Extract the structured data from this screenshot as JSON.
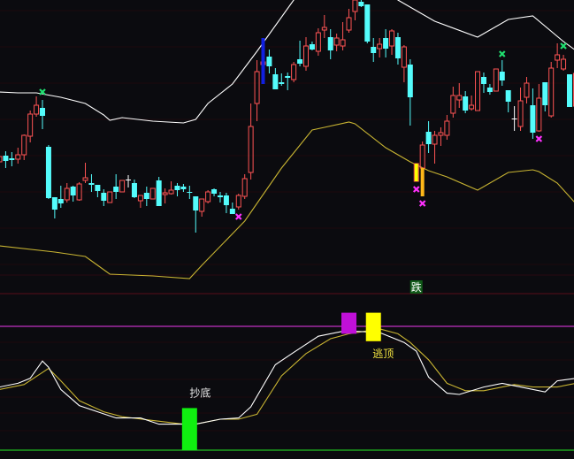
{
  "colors": {
    "background": "#0b0b0f",
    "up_candle": "#ff5454",
    "down_candle": "#54fcfc",
    "doji": "#ffffff",
    "upper_band": "#ffffff",
    "lower_band": "#c8b432",
    "osc_fast": "#ffffff",
    "osc_slow": "#c8b432",
    "grid": "#3a0a12",
    "ref_line_high": "#c030c0",
    "ref_line_low": "#20c020",
    "buy_marker": "#20e070",
    "sell_marker": "#ff30ff"
  },
  "chart_data": [
    {
      "type": "candlestick",
      "panel": "price",
      "title": "",
      "ylim": [
        0,
        330
      ],
      "candles_ohlc": [
        [
          147,
          155,
          145,
          153
        ],
        [
          154,
          159,
          140,
          148
        ],
        [
          151,
          158,
          142,
          149
        ],
        [
          150,
          163,
          145,
          155
        ],
        [
          155,
          178,
          149,
          177
        ],
        [
          176,
          205,
          169,
          201
        ],
        [
          201,
          221,
          198,
          211
        ],
        [
          208,
          217,
          184,
          199
        ],
        [
          164,
          166,
          105,
          106
        ],
        [
          107,
          107,
          83,
          93
        ],
        [
          105,
          120,
          95,
          100
        ],
        [
          104,
          123,
          101,
          117
        ],
        [
          119,
          120,
          102,
          109
        ],
        [
          104,
          124,
          103,
          122
        ],
        [
          126,
          146,
          123,
          129
        ],
        [
          123,
          133,
          113,
          121
        ],
        [
          121,
          121,
          107,
          114
        ],
        [
          112,
          116,
          97,
          103
        ],
        [
          101,
          113,
          101,
          113
        ],
        [
          119,
          133,
          105,
          113
        ],
        [
          113,
          126,
          113,
          126
        ],
        [
          127,
          132,
          118,
          127
        ],
        [
          123,
          127,
          106,
          107
        ],
        [
          103,
          109,
          95,
          109
        ],
        [
          112,
          119,
          97,
          105
        ],
        [
          105,
          117,
          105,
          117
        ],
        [
          126,
          130,
          97,
          97
        ],
        [
          110,
          117,
          100,
          112
        ],
        [
          111,
          125,
          110,
          115
        ],
        [
          120,
          123,
          108,
          115
        ],
        [
          119,
          122,
          113,
          116
        ],
        [
          113,
          120,
          105,
          112
        ],
        [
          108,
          108,
          67,
          92
        ],
        [
          91,
          105,
          85,
          105
        ],
        [
          102,
          115,
          100,
          113
        ],
        [
          116,
          117,
          108,
          111
        ],
        [
          109,
          113,
          101,
          107
        ],
        [
          109,
          112,
          89,
          98
        ],
        [
          94,
          101,
          88,
          88
        ],
        [
          96,
          111,
          93,
          109
        ],
        [
          108,
          133,
          105,
          128
        ],
        [
          135,
          213,
          127,
          187
        ],
        [
          213,
          262,
          193,
          249
        ],
        [
          257,
          265,
          250,
          260
        ],
        [
          266,
          274,
          247,
          255
        ],
        [
          246,
          253,
          229,
          229
        ],
        [
          237,
          247,
          233,
          235
        ],
        [
          244,
          248,
          228,
          242
        ],
        [
          240,
          260,
          237,
          257
        ],
        [
          263,
          284,
          255,
          258
        ],
        [
          255,
          288,
          250,
          278
        ],
        [
          280,
          283,
          273,
          274
        ],
        [
          272,
          298,
          267,
          293
        ],
        [
          296,
          313,
          287,
          299
        ],
        [
          288,
          297,
          263,
          273
        ],
        [
          279,
          292,
          272,
          287
        ],
        [
          278,
          305,
          273,
          285
        ],
        [
          296,
          320,
          293,
          310
        ],
        [
          317,
          335,
          307,
          330
        ],
        [
          328,
          335,
          322,
          323
        ],
        [
          325,
          325,
          281,
          283
        ],
        [
          277,
          287,
          260,
          270
        ],
        [
          275,
          287,
          265,
          280
        ],
        [
          287,
          297,
          265,
          275
        ],
        [
          278,
          297,
          268,
          295
        ],
        [
          288,
          293,
          257,
          264
        ],
        [
          254,
          279,
          237,
          277
        ],
        [
          257,
          263,
          188,
          220
        ],
        [
          125,
          145,
          125,
          145
        ],
        [
          140,
          170,
          140,
          166
        ],
        [
          181,
          193,
          157,
          167
        ],
        [
          167,
          182,
          145,
          177
        ],
        [
          177,
          186,
          165,
          180
        ],
        [
          177,
          200,
          172,
          193
        ],
        [
          202,
          232,
          197,
          222
        ],
        [
          217,
          236,
          208,
          222
        ],
        [
          221,
          227,
          202,
          205
        ],
        [
          207,
          222,
          205,
          211
        ],
        [
          205,
          249,
          205,
          249
        ],
        [
          243,
          248,
          225,
          235
        ],
        [
          231,
          235,
          223,
          226
        ],
        [
          227,
          252,
          227,
          252
        ],
        [
          249,
          262,
          233,
          239
        ],
        [
          228,
          228,
          203,
          215
        ],
        [
          196,
          210,
          182,
          196
        ],
        [
          187,
          231,
          182,
          216
        ],
        [
          220,
          243,
          213,
          236
        ],
        [
          211,
          230,
          173,
          180
        ],
        [
          182,
          235,
          181,
          219
        ],
        [
          237,
          237,
          204,
          211
        ],
        [
          199,
          260,
          197,
          253
        ],
        [
          262,
          281,
          253,
          268
        ],
        [
          252,
          268,
          250,
          263
        ],
        [
          246,
          246,
          209,
          209
        ],
        [
          210,
          247,
          210,
          247
        ]
      ],
      "upper_band": [
        [
          0,
          226
        ],
        [
          3,
          225
        ],
        [
          6,
          225
        ],
        [
          10,
          220
        ],
        [
          14,
          213
        ],
        [
          17,
          200
        ],
        [
          18,
          194
        ],
        [
          20,
          197
        ],
        [
          25,
          193
        ],
        [
          30,
          191
        ],
        [
          32,
          195
        ],
        [
          34,
          213
        ],
        [
          38,
          235
        ],
        [
          42,
          272
        ],
        [
          48,
          330
        ],
        [
          50,
          345
        ],
        [
          63,
          342
        ],
        [
          65,
          330
        ],
        [
          71,
          306
        ],
        [
          78,
          288
        ],
        [
          83,
          308
        ],
        [
          87,
          312
        ],
        [
          92,
          283
        ],
        [
          94,
          273
        ]
      ],
      "lower_band": [
        [
          0,
          52
        ],
        [
          9,
          45
        ],
        [
          14,
          40
        ],
        [
          16,
          30
        ],
        [
          18,
          20
        ],
        [
          25,
          18
        ],
        [
          31,
          15
        ],
        [
          33,
          30
        ],
        [
          40,
          80
        ],
        [
          46,
          140
        ],
        [
          51,
          183
        ],
        [
          53,
          186
        ],
        [
          57,
          192
        ],
        [
          58,
          190
        ],
        [
          63,
          163
        ],
        [
          67,
          147
        ],
        [
          70,
          137
        ],
        [
          73,
          130
        ],
        [
          78,
          115
        ],
        [
          83,
          135
        ],
        [
          87,
          138
        ],
        [
          88,
          136
        ],
        [
          91,
          123
        ],
        [
          94,
          100
        ]
      ],
      "signal_bars": [
        {
          "index": 43,
          "from": 235,
          "to": 287,
          "color": "#1020e0"
        },
        {
          "index": 68,
          "from": 125,
          "to": 145,
          "color": "#ffff00"
        },
        {
          "index": 69,
          "from": 108,
          "to": 140,
          "color": "#ffb818"
        }
      ],
      "buy_markers": [
        {
          "index": 7,
          "value": 226
        },
        {
          "index": 82,
          "value": 269
        },
        {
          "index": 92,
          "value": 278
        }
      ],
      "sell_markers": [
        {
          "index": 39,
          "value": 85
        },
        {
          "index": 68,
          "value": 116
        },
        {
          "index": 69,
          "value": 100
        },
        {
          "index": 88,
          "value": 173
        }
      ],
      "label_box": {
        "index": 68,
        "text": "跌",
        "bg": "#105a18",
        "color": "#ffffff"
      }
    },
    {
      "type": "line",
      "panel": "oscillator",
      "title": "",
      "ylim": [
        -7,
        126
      ],
      "reference_lines": [
        {
          "value": 100,
          "color": "#c030c0"
        },
        {
          "value": 0,
          "color": "#20c020"
        }
      ],
      "series": [
        {
          "color": "#ffffff",
          "points": [
            [
              0,
              51
            ],
            [
              3,
              54
            ],
            [
              5,
              58
            ],
            [
              7,
              72
            ],
            [
              8,
              67
            ],
            [
              10,
              49
            ],
            [
              13,
              36
            ],
            [
              16,
              31
            ],
            [
              19,
              26
            ],
            [
              23,
              26
            ],
            [
              26,
              21
            ],
            [
              30,
              21
            ],
            [
              32,
              21
            ],
            [
              36,
              25
            ],
            [
              39,
              26
            ],
            [
              41,
              35
            ],
            [
              45,
              69
            ],
            [
              48,
              79
            ],
            [
              52,
              92
            ],
            [
              56,
              96
            ],
            [
              58,
              96
            ],
            [
              62,
              95
            ],
            [
              66,
              87
            ],
            [
              68,
              80
            ],
            [
              70,
              59
            ],
            [
              73,
              46
            ],
            [
              75,
              45
            ],
            [
              79,
              51
            ],
            [
              82,
              54
            ],
            [
              85,
              51
            ],
            [
              89,
              47
            ],
            [
              91,
              56
            ],
            [
              94,
              58
            ]
          ]
        },
        {
          "color": "#c8b432",
          "points": [
            [
              0,
              49
            ],
            [
              4,
              53
            ],
            [
              8,
              66
            ],
            [
              10,
              56
            ],
            [
              13,
              40
            ],
            [
              17,
              31
            ],
            [
              20,
              27
            ],
            [
              25,
              24
            ],
            [
              30,
              21
            ],
            [
              32,
              21
            ],
            [
              36,
              25
            ],
            [
              39,
              25
            ],
            [
              42,
              29
            ],
            [
              46,
              60
            ],
            [
              50,
              78
            ],
            [
              54,
              90
            ],
            [
              57,
              94
            ],
            [
              62,
              98
            ],
            [
              65,
              94
            ],
            [
              67,
              87
            ],
            [
              70,
              73
            ],
            [
              73,
              54
            ],
            [
              76,
              48
            ],
            [
              79,
              48
            ],
            [
              84,
              53
            ],
            [
              87,
              51
            ],
            [
              91,
              51
            ],
            [
              94,
              54
            ]
          ]
        }
      ],
      "signal_boxes": [
        {
          "index": 31,
          "from": 0,
          "to": 34,
          "color": "#10f010",
          "label": "抄底",
          "label_color": "#e8e8e8",
          "label_pos": "above"
        },
        {
          "index": 57,
          "from": 94,
          "to": 111,
          "color": "#c010d8",
          "label": "",
          "label_color": "",
          "label_pos": ""
        },
        {
          "index": 61,
          "from": 88,
          "to": 111,
          "color": "#ffff00",
          "label": "逃顶",
          "label_color": "#f0e040",
          "label_pos": "below"
        }
      ]
    }
  ],
  "labels": {
    "fall": "跌",
    "bottom_fishing": "抄底",
    "escape_top": "逃顶"
  }
}
